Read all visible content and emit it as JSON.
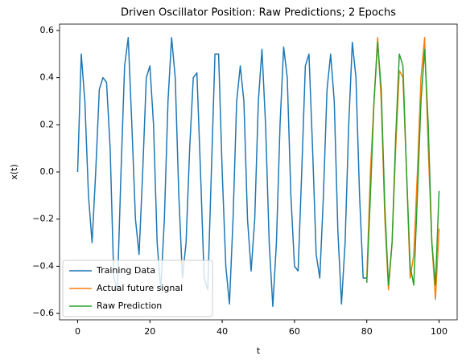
{
  "chart_data": {
    "type": "line",
    "title": "Driven Oscillator Position: Raw Predictions; 2 Epochs",
    "x_label": "t",
    "y_label": "x(t)",
    "xlim": [
      -5,
      105
    ],
    "ylim": [
      -0.627,
      0.627
    ],
    "xticks": [
      0,
      20,
      40,
      60,
      80,
      100
    ],
    "yticks": [
      {
        "value": -0.6,
        "label": "−0.6"
      },
      {
        "value": -0.4,
        "label": "−0.4"
      },
      {
        "value": -0.2,
        "label": "−0.2"
      },
      {
        "value": 0,
        "label": "0.0"
      },
      0.2,
      0.4,
      0.6
    ],
    "legend": "lower left",
    "series": [
      {
        "name": "Training Data",
        "color": "#1f77b4",
        "x": [
          0,
          1,
          2,
          3,
          4,
          5,
          6,
          7,
          8,
          9,
          10,
          11,
          12,
          13,
          14,
          15,
          16,
          17,
          18,
          19,
          20,
          21,
          22,
          23,
          24,
          25,
          26,
          27,
          28,
          29,
          30,
          31,
          32,
          33,
          34,
          35,
          36,
          37,
          38,
          39,
          40,
          41,
          42,
          43,
          44,
          45,
          46,
          47,
          48,
          49,
          50,
          51,
          52,
          53,
          54,
          55,
          56,
          57,
          58,
          59,
          60,
          61,
          62,
          63,
          64,
          65,
          66,
          67,
          68,
          69,
          70,
          71,
          72,
          73,
          74,
          75,
          76,
          77,
          78,
          79,
          80
        ],
        "values": [
          0.0,
          0.5,
          0.3,
          -0.1,
          -0.3,
          0.0,
          0.35,
          0.4,
          0.38,
          0.1,
          -0.45,
          -0.5,
          0.0,
          0.45,
          0.57,
          0.2,
          -0.2,
          -0.35,
          0.0,
          0.4,
          0.45,
          0.2,
          -0.3,
          -0.5,
          -0.2,
          0.3,
          0.57,
          0.4,
          -0.1,
          -0.45,
          -0.3,
          0.1,
          0.4,
          0.42,
          0.0,
          -0.45,
          -0.5,
          0.0,
          0.5,
          0.5,
          0.0,
          -0.4,
          -0.56,
          -0.2,
          0.3,
          0.45,
          0.3,
          -0.2,
          -0.42,
          -0.2,
          0.3,
          0.52,
          0.2,
          -0.3,
          -0.57,
          -0.3,
          0.2,
          0.53,
          0.4,
          -0.1,
          -0.4,
          -0.42,
          0.0,
          0.45,
          0.5,
          0.1,
          -0.35,
          -0.45,
          -0.1,
          0.35,
          0.5,
          0.3,
          -0.25,
          -0.56,
          -0.3,
          0.2,
          0.55,
          0.4,
          -0.1,
          -0.45,
          -0.45
        ]
      },
      {
        "name": "Actual future signal",
        "color": "#ff7f0e",
        "x": [
          80,
          81,
          82,
          83,
          84,
          85,
          86,
          87,
          88,
          89,
          90,
          91,
          92,
          93,
          94,
          95,
          96,
          97,
          98,
          99,
          100
        ],
        "values": [
          -0.45,
          0.0,
          0.3,
          0.57,
          0.3,
          -0.2,
          -0.5,
          -0.3,
          0.1,
          0.43,
          0.4,
          0.0,
          -0.45,
          -0.35,
          0.0,
          0.4,
          0.57,
          0.1,
          -0.3,
          -0.54,
          -0.24
        ]
      },
      {
        "name": "Raw Prediction",
        "color": "#2ca02c",
        "x": [
          80,
          81,
          82,
          83,
          84,
          85,
          86,
          87,
          88,
          89,
          90,
          91,
          92,
          93,
          94,
          95,
          96,
          97,
          98,
          99,
          100
        ],
        "values": [
          -0.47,
          -0.1,
          0.3,
          0.55,
          0.35,
          -0.15,
          -0.48,
          -0.3,
          0.15,
          0.5,
          0.45,
          0.0,
          -0.4,
          -0.48,
          -0.1,
          0.3,
          0.52,
          0.2,
          -0.3,
          -0.48,
          -0.08
        ]
      }
    ]
  }
}
